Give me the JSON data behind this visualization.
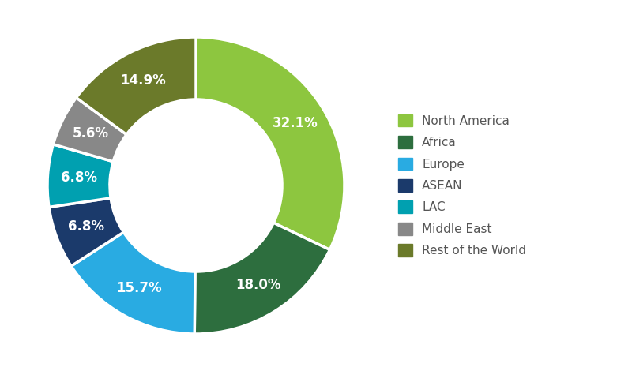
{
  "labels": [
    "North America",
    "Africa",
    "Europe",
    "ASEAN",
    "LAC",
    "Middle East",
    "Rest of the World"
  ],
  "values": [
    32.1,
    18.0,
    15.7,
    6.8,
    6.8,
    5.6,
    14.9
  ],
  "colors": [
    "#8dc63f",
    "#2d6e3e",
    "#29abe2",
    "#1b3a6b",
    "#00a0b0",
    "#888888",
    "#6b7a2a"
  ],
  "pct_labels": [
    "32.1%",
    "18.0%",
    "15.7%",
    "6.8%",
    "6.8%",
    "5.6%",
    "14.9%"
  ],
  "background_color": "#ffffff",
  "wedge_edge_color": "#ffffff",
  "wedge_linewidth": 2.5,
  "donut_width": 0.42,
  "label_fontsize": 12,
  "legend_fontsize": 11
}
